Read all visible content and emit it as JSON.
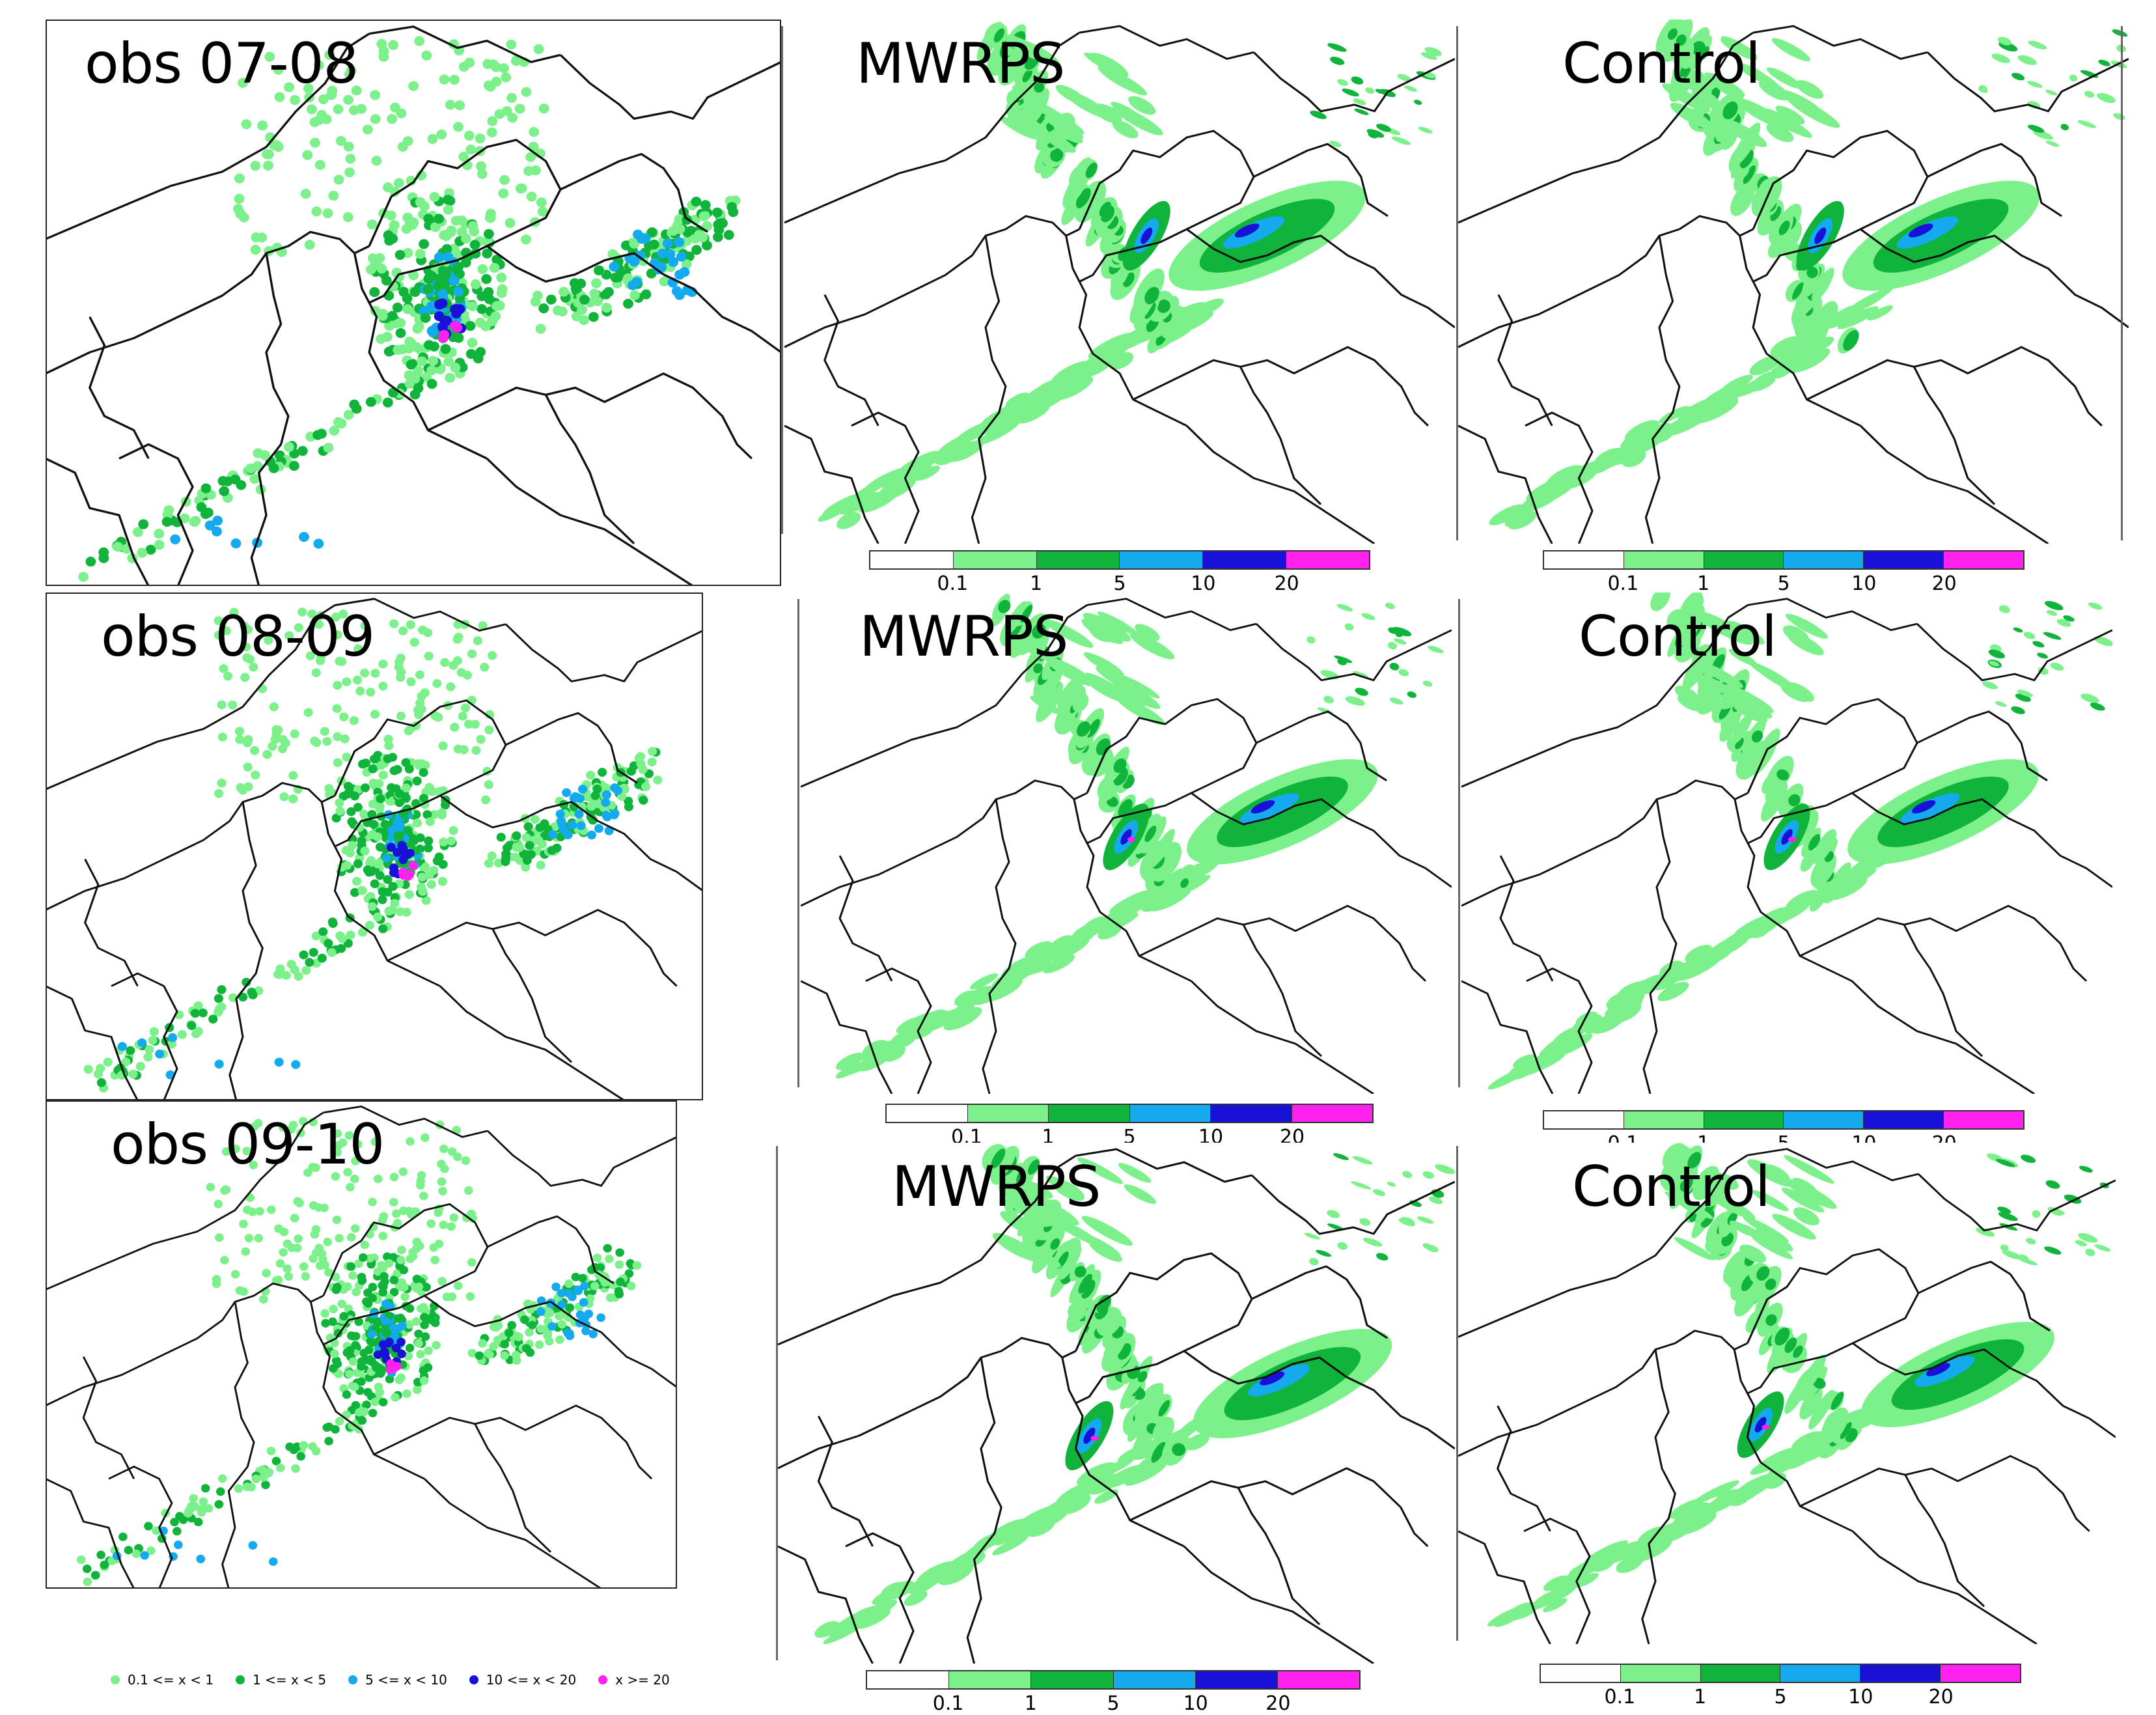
{
  "colors": {
    "c0": "#ffffff",
    "c1": "#7cf08a",
    "c2": "#10b43a",
    "c3": "#15aaee",
    "c4": "#1812d8",
    "c5": "#ff22ee",
    "border": "#111111"
  },
  "panels": [
    {
      "title": "obs 07-08",
      "kind": "obs",
      "hour": 0
    },
    {
      "title": "MWRPS",
      "kind": "model",
      "hour": 0,
      "seed": 11
    },
    {
      "title": "Control",
      "kind": "model",
      "hour": 0,
      "seed": 23
    },
    {
      "title": "obs 08-09",
      "kind": "obs",
      "hour": 1
    },
    {
      "title": "MWRPS",
      "kind": "model",
      "hour": 1,
      "seed": 37
    },
    {
      "title": "Control",
      "kind": "model",
      "hour": 1,
      "seed": 41
    },
    {
      "title": "obs 09-10",
      "kind": "obs",
      "hour": 2
    },
    {
      "title": "MWRPS",
      "kind": "model",
      "hour": 2,
      "seed": 53
    },
    {
      "title": "Control",
      "kind": "model",
      "hour": 2,
      "seed": 67
    }
  ],
  "colorbar": {
    "ticks": [
      "0.1",
      "1",
      "5",
      "10",
      "20"
    ]
  },
  "obs_legend": [
    {
      "label": "0.1 <= x < 1",
      "color_key": "c1"
    },
    {
      "label": "1 <= x < 5",
      "color_key": "c2"
    },
    {
      "label": "5 <= x < 10",
      "color_key": "c3"
    },
    {
      "label": "10 <= x < 20",
      "color_key": "c4"
    },
    {
      "label": "x >= 20",
      "color_key": "c5"
    }
  ]
}
